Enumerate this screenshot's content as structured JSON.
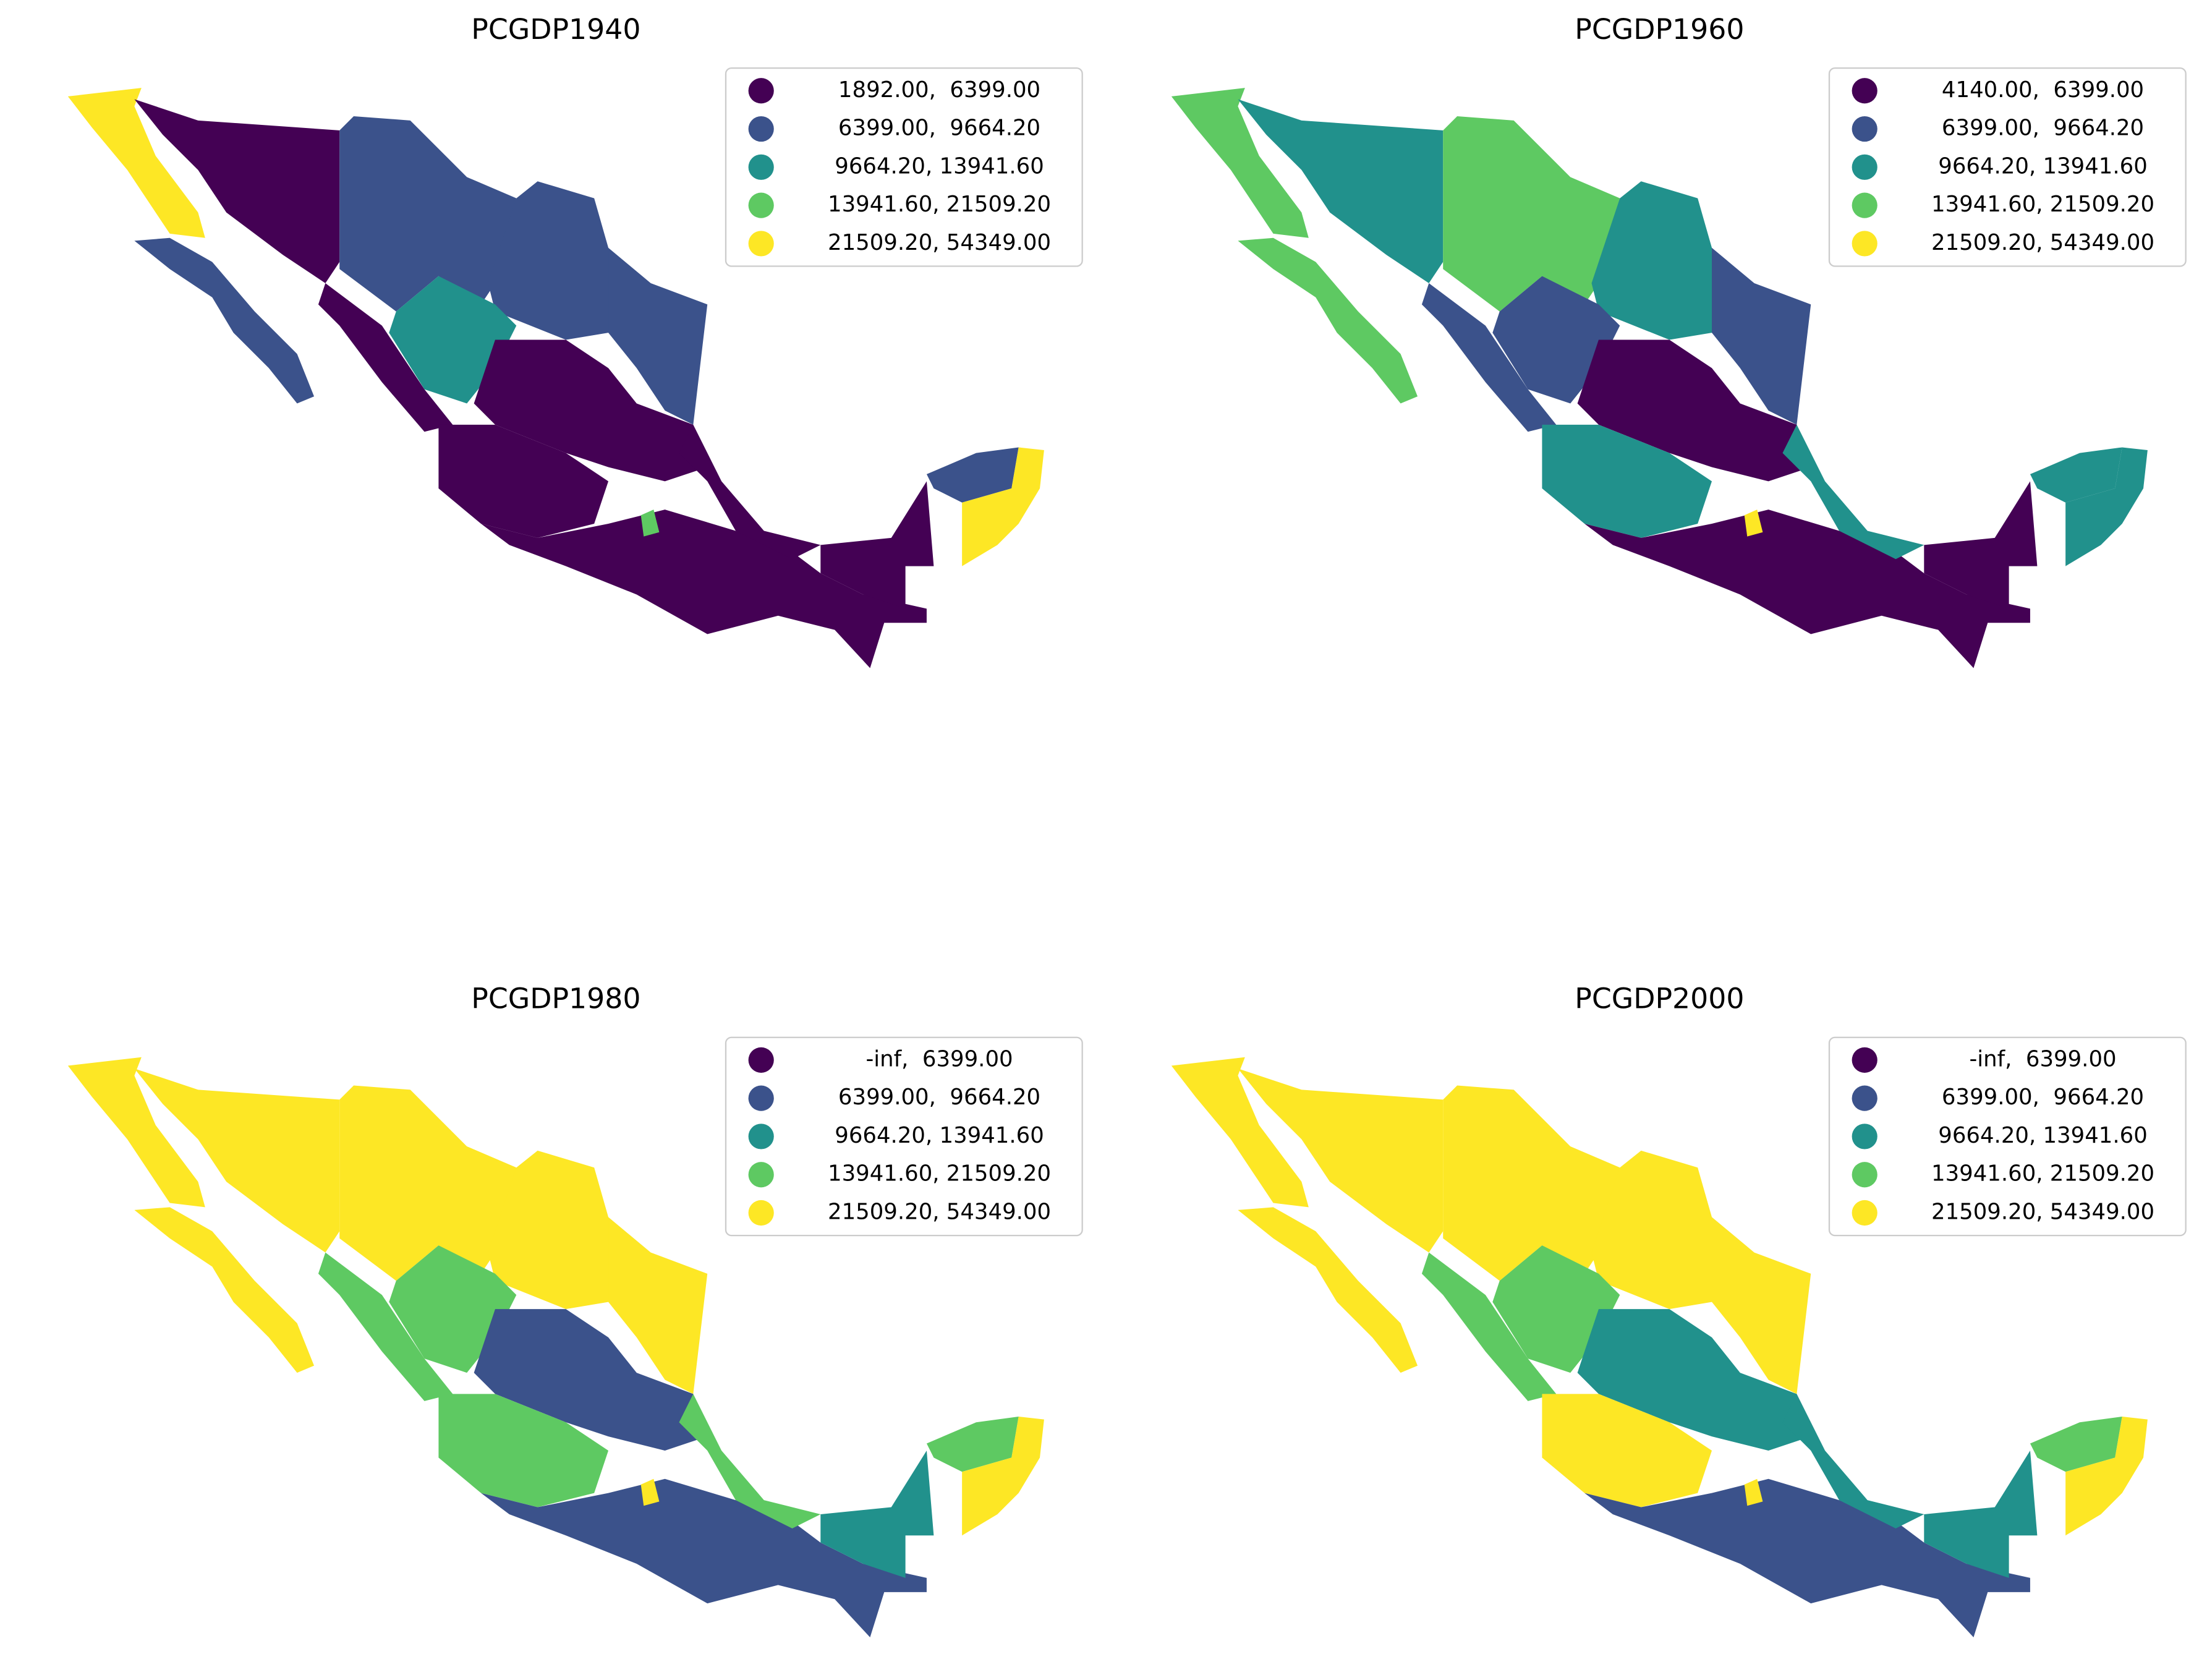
{
  "colors": [
    "#440154",
    "#3b528b",
    "#21918c",
    "#5ec962",
    "#fde725"
  ],
  "panels": [
    {
      "title": "PCGDP1940",
      "legend": [
        "1892.00,  6399.00",
        "6399.00,  9664.20",
        "9664.20, 13941.60",
        "13941.60, 21509.20",
        "21509.20, 54349.00"
      ]
    },
    {
      "title": "PCGDP1960",
      "legend": [
        "4140.00,  6399.00",
        "6399.00,  9664.20",
        "9664.20, 13941.60",
        "13941.60, 21509.20",
        "21509.20, 54349.00"
      ]
    },
    {
      "title": "PCGDP1980",
      "legend": [
        "-inf,  6399.00",
        "6399.00,  9664.20",
        "9664.20, 13941.60",
        "13941.60, 21509.20",
        "21509.20, 54349.00"
      ]
    },
    {
      "title": "PCGDP2000",
      "legend": [
        "-inf,  6399.00",
        "6399.00,  9664.20",
        "9664.20, 13941.60",
        "13941.60, 21509.20",
        "21509.20, 54349.00"
      ]
    }
  ]
}
